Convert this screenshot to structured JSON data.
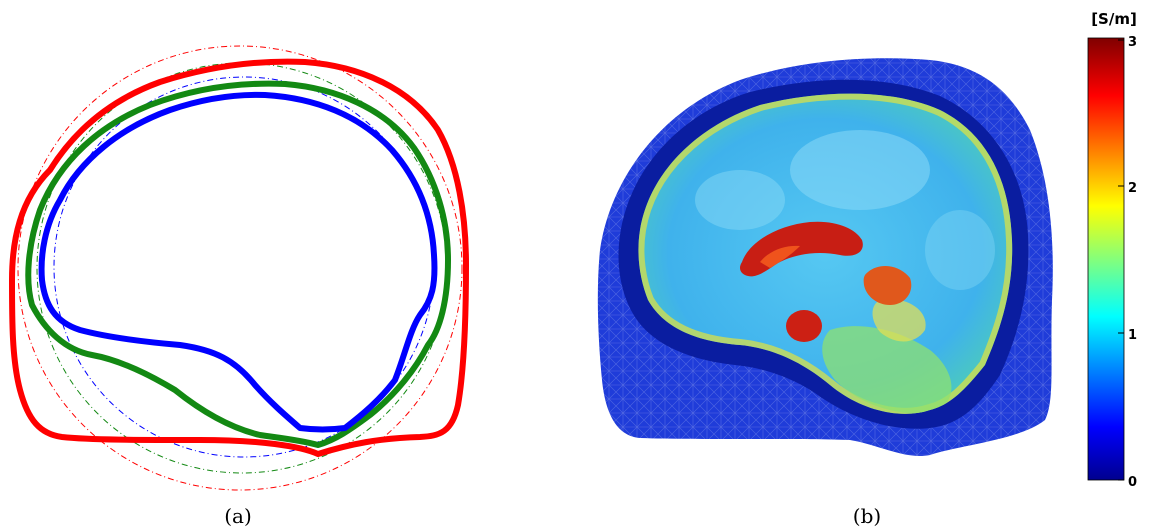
{
  "captions": {
    "a": "(a)",
    "b": "(b)"
  },
  "colorbar": {
    "unit": "[S/m]",
    "ticks": [
      "0",
      "1",
      "2",
      "3"
    ],
    "colors": [
      "#00008f",
      "#0000ff",
      "#00ffff",
      "#ffff00",
      "#ff0000",
      "#800000"
    ]
  },
  "panel_a": {
    "legend": [],
    "line_colors": {
      "scalp": "#ff0000",
      "skull": "#138913",
      "brain": "#0000ff"
    }
  },
  "panel_b": {
    "colors": {
      "scalp": "#1f3cd9",
      "csf_ring": "#0a1da0",
      "brain": "#40b8ee",
      "hot": "#c81e14",
      "warm": "#f0d040"
    }
  }
}
